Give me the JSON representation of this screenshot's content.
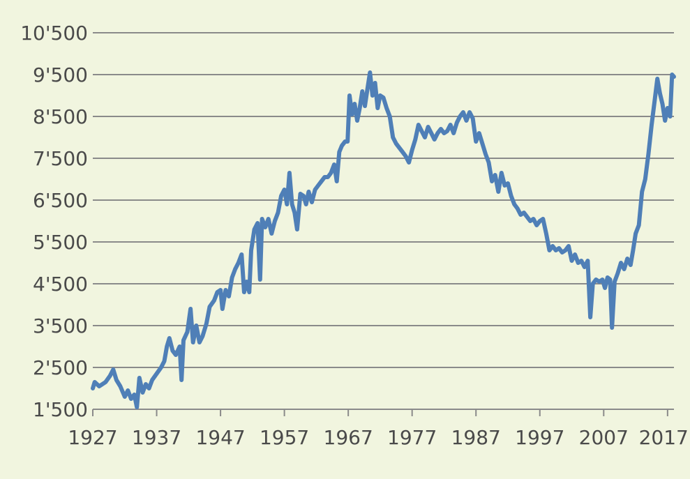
{
  "chart_data": {
    "type": "line",
    "title": "",
    "xlabel": "",
    "ylabel": "",
    "xlim": [
      1927,
      2018
    ],
    "ylim": [
      1500,
      10500
    ],
    "grid": "horizontal",
    "x_ticks": [
      1927,
      1937,
      1947,
      1957,
      1967,
      1977,
      1987,
      1997,
      2007,
      2017
    ],
    "x_tick_labels": [
      "1927",
      "1937",
      "1947",
      "1957",
      "1967",
      "1977",
      "1987",
      "1997",
      "2007",
      "2017"
    ],
    "y_ticks": [
      1500,
      2500,
      3500,
      4500,
      5500,
      6500,
      7500,
      8500,
      9500,
      10500
    ],
    "y_tick_labels": [
      "1'500",
      "2'500",
      "3'500",
      "4'500",
      "5'500",
      "6'500",
      "7'500",
      "8'500",
      "9'500",
      "10'500"
    ],
    "series": [
      {
        "color": "#4f7fb7",
        "points": [
          [
            1927.0,
            2000
          ],
          [
            1927.3,
            2150
          ],
          [
            1928.0,
            2050
          ],
          [
            1929.0,
            2150
          ],
          [
            1929.7,
            2300
          ],
          [
            1930.2,
            2450
          ],
          [
            1930.7,
            2200
          ],
          [
            1931.3,
            2050
          ],
          [
            1932.0,
            1800
          ],
          [
            1932.5,
            1950
          ],
          [
            1933.0,
            1750
          ],
          [
            1933.5,
            1850
          ],
          [
            1933.9,
            1550
          ],
          [
            1934.3,
            2250
          ],
          [
            1934.8,
            1900
          ],
          [
            1935.3,
            2100
          ],
          [
            1935.8,
            2000
          ],
          [
            1936.3,
            2200
          ],
          [
            1937.0,
            2350
          ],
          [
            1937.7,
            2500
          ],
          [
            1938.2,
            2650
          ],
          [
            1938.6,
            3000
          ],
          [
            1939.0,
            3200
          ],
          [
            1939.5,
            2900
          ],
          [
            1940.0,
            2800
          ],
          [
            1940.6,
            3000
          ],
          [
            1940.9,
            2200
          ],
          [
            1941.2,
            3150
          ],
          [
            1941.8,
            3350
          ],
          [
            1942.3,
            3900
          ],
          [
            1942.7,
            3100
          ],
          [
            1943.2,
            3500
          ],
          [
            1943.7,
            3100
          ],
          [
            1944.2,
            3250
          ],
          [
            1944.8,
            3550
          ],
          [
            1945.3,
            3950
          ],
          [
            1946.0,
            4100
          ],
          [
            1946.5,
            4300
          ],
          [
            1947.0,
            4350
          ],
          [
            1947.3,
            3900
          ],
          [
            1947.8,
            4350
          ],
          [
            1948.3,
            4200
          ],
          [
            1948.8,
            4650
          ],
          [
            1949.3,
            4850
          ],
          [
            1949.8,
            5000
          ],
          [
            1950.3,
            5200
          ],
          [
            1950.7,
            4300
          ],
          [
            1951.1,
            4550
          ],
          [
            1951.5,
            4300
          ],
          [
            1951.8,
            5300
          ],
          [
            1952.3,
            5800
          ],
          [
            1952.8,
            5950
          ],
          [
            1953.2,
            4600
          ],
          [
            1953.5,
            6050
          ],
          [
            1954.0,
            5850
          ],
          [
            1954.5,
            6050
          ],
          [
            1955.0,
            5700
          ],
          [
            1955.5,
            6000
          ],
          [
            1956.0,
            6200
          ],
          [
            1956.5,
            6600
          ],
          [
            1957.0,
            6750
          ],
          [
            1957.4,
            6400
          ],
          [
            1957.8,
            7150
          ],
          [
            1958.2,
            6400
          ],
          [
            1958.6,
            6200
          ],
          [
            1959.0,
            5800
          ],
          [
            1959.5,
            6650
          ],
          [
            1960.0,
            6600
          ],
          [
            1960.4,
            6400
          ],
          [
            1960.8,
            6700
          ],
          [
            1961.3,
            6450
          ],
          [
            1961.8,
            6750
          ],
          [
            1962.3,
            6850
          ],
          [
            1962.8,
            6950
          ],
          [
            1963.3,
            7050
          ],
          [
            1963.8,
            7050
          ],
          [
            1964.3,
            7150
          ],
          [
            1964.8,
            7350
          ],
          [
            1965.2,
            6950
          ],
          [
            1965.6,
            7650
          ],
          [
            1966.0,
            7800
          ],
          [
            1966.5,
            7900
          ],
          [
            1966.9,
            7900
          ],
          [
            1967.2,
            9000
          ],
          [
            1967.6,
            8550
          ],
          [
            1968.0,
            8800
          ],
          [
            1968.4,
            8400
          ],
          [
            1968.8,
            8700
          ],
          [
            1969.2,
            9100
          ],
          [
            1969.6,
            8750
          ],
          [
            1970.0,
            9150
          ],
          [
            1970.4,
            9550
          ],
          [
            1970.8,
            9000
          ],
          [
            1971.2,
            9300
          ],
          [
            1971.6,
            8700
          ],
          [
            1972.0,
            9000
          ],
          [
            1972.5,
            8950
          ],
          [
            1973.0,
            8700
          ],
          [
            1973.5,
            8500
          ],
          [
            1974.0,
            8000
          ],
          [
            1974.5,
            7850
          ],
          [
            1975.0,
            7750
          ],
          [
            1975.5,
            7650
          ],
          [
            1976.0,
            7550
          ],
          [
            1976.5,
            7400
          ],
          [
            1977.0,
            7700
          ],
          [
            1977.5,
            7950
          ],
          [
            1978.0,
            8300
          ],
          [
            1978.5,
            8150
          ],
          [
            1979.0,
            8000
          ],
          [
            1979.5,
            8250
          ],
          [
            1980.0,
            8100
          ],
          [
            1980.5,
            7950
          ],
          [
            1981.0,
            8100
          ],
          [
            1981.5,
            8200
          ],
          [
            1982.0,
            8100
          ],
          [
            1982.5,
            8150
          ],
          [
            1983.0,
            8300
          ],
          [
            1983.5,
            8100
          ],
          [
            1984.0,
            8350
          ],
          [
            1984.5,
            8500
          ],
          [
            1985.0,
            8600
          ],
          [
            1985.5,
            8400
          ],
          [
            1986.0,
            8600
          ],
          [
            1986.5,
            8450
          ],
          [
            1987.0,
            7900
          ],
          [
            1987.5,
            8100
          ],
          [
            1988.0,
            7850
          ],
          [
            1988.5,
            7600
          ],
          [
            1989.0,
            7400
          ],
          [
            1989.5,
            6950
          ],
          [
            1990.0,
            7100
          ],
          [
            1990.5,
            6700
          ],
          [
            1991.0,
            7150
          ],
          [
            1991.5,
            6850
          ],
          [
            1992.0,
            6900
          ],
          [
            1992.5,
            6600
          ],
          [
            1993.0,
            6400
          ],
          [
            1993.5,
            6300
          ],
          [
            1994.0,
            6150
          ],
          [
            1994.5,
            6200
          ],
          [
            1995.0,
            6100
          ],
          [
            1995.5,
            6000
          ],
          [
            1996.0,
            6050
          ],
          [
            1996.5,
            5900
          ],
          [
            1997.0,
            6000
          ],
          [
            1997.5,
            6050
          ],
          [
            1998.0,
            5700
          ],
          [
            1998.5,
            5300
          ],
          [
            1999.0,
            5400
          ],
          [
            1999.5,
            5300
          ],
          [
            2000.0,
            5350
          ],
          [
            2000.5,
            5250
          ],
          [
            2001.0,
            5300
          ],
          [
            2001.5,
            5400
          ],
          [
            2002.0,
            5050
          ],
          [
            2002.5,
            5200
          ],
          [
            2003.0,
            5000
          ],
          [
            2003.5,
            5050
          ],
          [
            2004.0,
            4900
          ],
          [
            2004.5,
            5050
          ],
          [
            2004.9,
            3700
          ],
          [
            2005.3,
            4500
          ],
          [
            2005.8,
            4600
          ],
          [
            2006.3,
            4550
          ],
          [
            2006.8,
            4600
          ],
          [
            2007.2,
            4400
          ],
          [
            2007.6,
            4650
          ],
          [
            2008.0,
            4600
          ],
          [
            2008.3,
            3450
          ],
          [
            2008.7,
            4550
          ],
          [
            2009.2,
            4750
          ],
          [
            2009.7,
            5000
          ],
          [
            2010.2,
            4850
          ],
          [
            2010.7,
            5100
          ],
          [
            2011.2,
            4950
          ],
          [
            2011.6,
            5300
          ],
          [
            2012.0,
            5700
          ],
          [
            2012.5,
            5900
          ],
          [
            2013.0,
            6700
          ],
          [
            2013.5,
            7000
          ],
          [
            2014.0,
            7600
          ],
          [
            2014.5,
            8300
          ],
          [
            2015.0,
            8900
          ],
          [
            2015.4,
            9400
          ],
          [
            2015.8,
            9050
          ],
          [
            2016.2,
            8800
          ],
          [
            2016.6,
            8400
          ],
          [
            2017.0,
            8700
          ],
          [
            2017.4,
            8500
          ],
          [
            2017.7,
            9500
          ],
          [
            2018.0,
            9450
          ]
        ]
      }
    ]
  }
}
